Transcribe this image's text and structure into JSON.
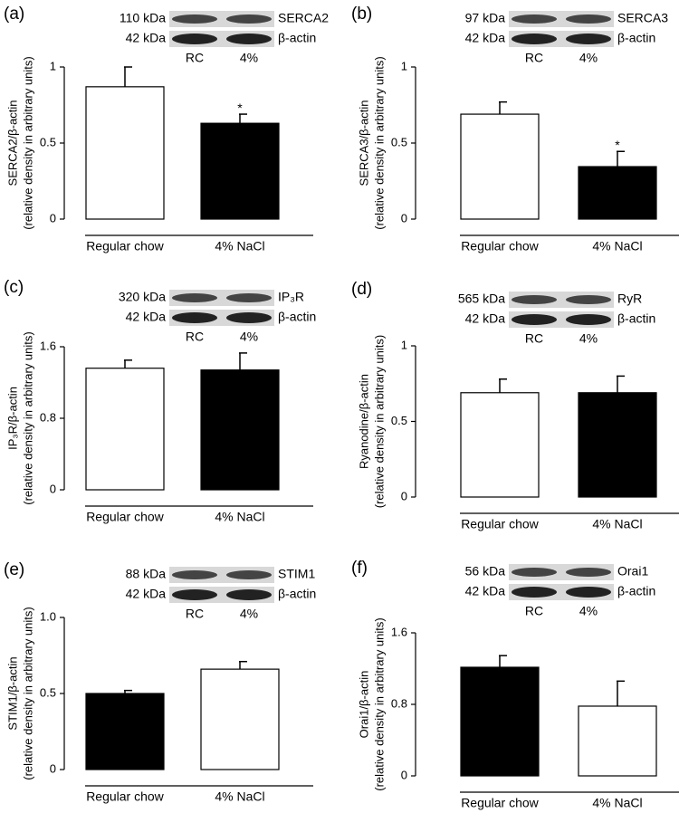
{
  "chart_data": [
    {
      "type": "bar",
      "panel_label": "(a)",
      "blot": {
        "protein_kda": "110 kDa",
        "protein": "SERCA2",
        "actin_kda": "42 kDa",
        "actin": "β-actin",
        "lanes": [
          "RC",
          "4%"
        ]
      },
      "ylabel": [
        "SERCA2/β-actin",
        "(relative density in arbitrary units)"
      ],
      "categories": [
        "Regular chow",
        "4% NaCl"
      ],
      "series": [
        {
          "values": [
            0.87,
            0.63
          ],
          "errors": [
            0.13,
            0.06
          ],
          "colors": [
            "#ffffff",
            "#000000"
          ]
        }
      ],
      "significance": [
        null,
        "*"
      ],
      "ylim": [
        0,
        1
      ],
      "yticks": [
        0,
        0.5,
        1
      ]
    },
    {
      "type": "bar",
      "panel_label": "(b)",
      "blot": {
        "protein_kda": "97 kDa",
        "protein": "SERCA3",
        "actin_kda": "42 kDa",
        "actin": "β-actin",
        "lanes": [
          "RC",
          "4%"
        ]
      },
      "ylabel": [
        "SERCA3/β-actin",
        "(relative density in arbitrary units)"
      ],
      "categories": [
        "Regular chow",
        "4% NaCl"
      ],
      "series": [
        {
          "values": [
            0.69,
            0.345
          ],
          "errors": [
            0.08,
            0.1
          ],
          "colors": [
            "#ffffff",
            "#000000"
          ]
        }
      ],
      "significance": [
        null,
        "*"
      ],
      "ylim": [
        0,
        1
      ],
      "yticks": [
        0,
        0.5,
        1
      ]
    },
    {
      "type": "bar",
      "panel_label": "(c)",
      "blot": {
        "protein_kda": "320 kDa",
        "protein": "IP₃R",
        "actin_kda": "42 kDa",
        "actin": "β-actin",
        "lanes": [
          "RC",
          "4%"
        ]
      },
      "ylabel": [
        "IP₃R/β-actin",
        "(relative density in arbitrary units)"
      ],
      "categories": [
        "Regular chow",
        "4% NaCl"
      ],
      "series": [
        {
          "values": [
            1.36,
            1.34
          ],
          "errors": [
            0.09,
            0.19
          ],
          "colors": [
            "#ffffff",
            "#000000"
          ]
        }
      ],
      "ylim": [
        0,
        1.6
      ],
      "yticks": [
        0,
        0.8,
        1.6
      ]
    },
    {
      "type": "bar",
      "panel_label": "(d)",
      "blot": {
        "protein_kda": "565 kDa",
        "protein": "RyR",
        "actin_kda": "42 kDa",
        "actin": "β-actin",
        "lanes": [
          "RC",
          "4%"
        ]
      },
      "ylabel": [
        "Ryanodine/β-actin",
        "(relative density in arbitrary units)"
      ],
      "categories": [
        "Regular chow",
        "4% NaCl"
      ],
      "series": [
        {
          "values": [
            0.69,
            0.69
          ],
          "errors": [
            0.09,
            0.11
          ],
          "colors": [
            "#ffffff",
            "#000000"
          ]
        }
      ],
      "ylim": [
        0,
        1
      ],
      "yticks": [
        0,
        0.5,
        1
      ]
    },
    {
      "type": "bar",
      "panel_label": "(e)",
      "blot": {
        "protein_kda": "88 kDa",
        "protein": "STIM1",
        "actin_kda": "42 kDa",
        "actin": "β-actin",
        "lanes": [
          "RC",
          "4%"
        ]
      },
      "ylabel": [
        "STIM1/β-actin",
        "(relative density in arbitrary units)"
      ],
      "categories": [
        "Regular chow",
        "4% NaCl"
      ],
      "series": [
        {
          "values": [
            0.5,
            0.66
          ],
          "errors": [
            0.02,
            0.05
          ],
          "colors": [
            "#000000",
            "#ffffff"
          ]
        }
      ],
      "ylim": [
        0,
        1
      ],
      "yticks": [
        0,
        0.5,
        {
          "value": 1,
          "label": "1.0"
        }
      ]
    },
    {
      "type": "bar",
      "panel_label": "(f)",
      "blot": {
        "protein_kda": "56 kDa",
        "protein": "Orai1",
        "actin_kda": "42 kDa",
        "actin": "β-actin",
        "lanes": [
          "RC",
          "4%"
        ]
      },
      "ylabel": [
        "Orai1/β-actin",
        "(relative density in arbitrary units)"
      ],
      "categories": [
        "Regular chow",
        "4% NaCl"
      ],
      "series": [
        {
          "values": [
            1.215,
            0.78
          ],
          "errors": [
            0.13,
            0.28
          ],
          "colors": [
            "#000000",
            "#ffffff"
          ]
        }
      ],
      "ylim": [
        0,
        1.6
      ],
      "yticks": [
        0,
        0.8,
        1.6
      ]
    }
  ]
}
